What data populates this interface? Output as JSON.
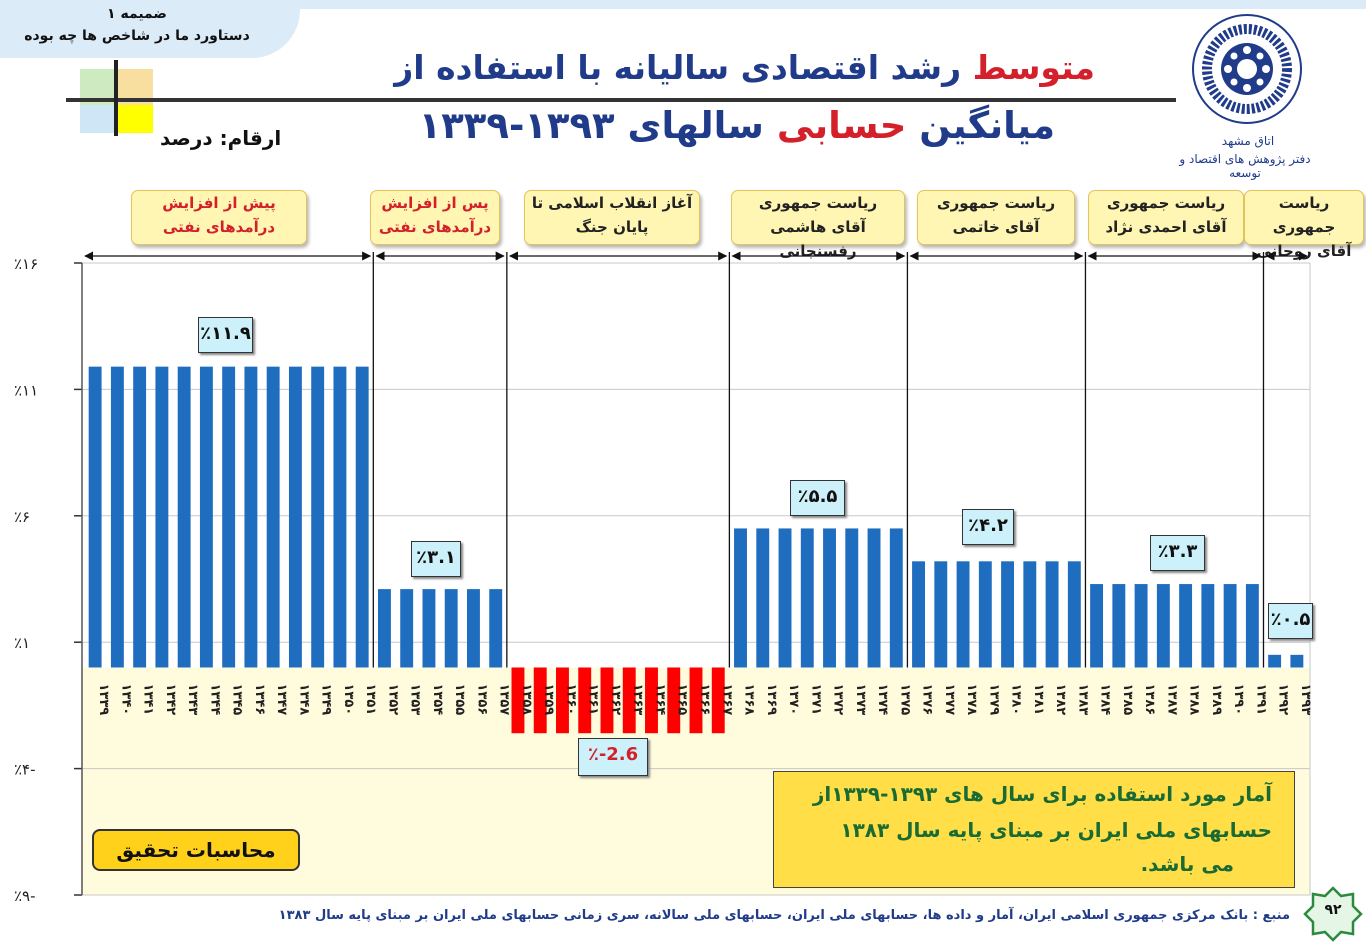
{
  "header": {
    "tab_line1": "ضمیمه ۱",
    "tab_line2": "دستاورد ما در شاخص ها چه بوده",
    "title1_red": "متوسط",
    "title1_rest": "رشد اقتصادی سالیانه با استفاده از",
    "title2_a": "میانگین",
    "title2_red": "حسابی",
    "title2_b": "سالهای ۱۳۹۳-۱۳۳۹",
    "units": "ارقام: درصد"
  },
  "logo": {
    "icon": "chamber-of-commerce-logo",
    "text1": "اتاق مشهد",
    "text2": "دفتر پژوهش های اقتصاد و توسعه"
  },
  "eras": [
    {
      "line1": "پیش از افزایش",
      "line2": "درآمدهای نفتی",
      "style": "red"
    },
    {
      "line1": "پس از افزایش",
      "line2": "درآمدهای نفتی",
      "style": "red"
    },
    {
      "line1": "آغاز انقلاب اسلامی تا",
      "line2": "پایان جنگ",
      "style": "dark"
    },
    {
      "line1": "ریاست جمهوری",
      "line2": "آقای هاشمی رفسنجانی",
      "style": "dark"
    },
    {
      "line1": "ریاست جمهوری",
      "line2": "آقای خاتمی",
      "style": "dark"
    },
    {
      "line1": "ریاست جمهوری",
      "line2": "آقای احمدی نژاد",
      "style": "dark"
    },
    {
      "line1": "ریاست جمهوری",
      "line2": "آقای روحانی",
      "style": "dark"
    }
  ],
  "chart_data": {
    "type": "bar",
    "ylim": [
      -9,
      16
    ],
    "yticks": [
      {
        "value": 16,
        "label": "٪۱۶"
      },
      {
        "value": 11,
        "label": "٪۱۱"
      },
      {
        "value": 6,
        "label": "٪۶"
      },
      {
        "value": 1,
        "label": "٪۱"
      },
      {
        "value": -4,
        "label": "٪۴-"
      },
      {
        "value": -9,
        "label": "٪۹-"
      }
    ],
    "categories": [
      "۱۳۳۹",
      "۱۳۴۰",
      "۱۳۴۱",
      "۱۳۴۲",
      "۱۳۴۳",
      "۱۳۴۴",
      "۱۳۴۵",
      "۱۳۴۶",
      "۱۳۴۷",
      "۱۳۴۸",
      "۱۳۴۹",
      "۱۳۵۰",
      "۱۳۵۱",
      "۱۳۵۲",
      "۱۳۵۳",
      "۱۳۵۴",
      "۱۳۵۵",
      "۱۳۵۶",
      "۱۳۵۷",
      "۱۳۵۸",
      "۱۳۵۹",
      "۱۳۶۰",
      "۱۳۶۱",
      "۱۳۶۲",
      "۱۳۶۳",
      "۱۳۶۴",
      "۱۳۶۵",
      "۱۳۶۶",
      "۱۳۶۷",
      "۱۳۶۸",
      "۱۳۶۹",
      "۱۳۷۰",
      "۱۳۷۱",
      "۱۳۷۲",
      "۱۳۷۳",
      "۱۳۷۴",
      "۱۳۷۵",
      "۱۳۷۶",
      "۱۳۷۷",
      "۱۳۷۸",
      "۱۳۷۹",
      "۱۳۸۰",
      "۱۳۸۱",
      "۱۳۸۲",
      "۱۳۸۳",
      "۱۳۸۴",
      "۱۳۸۵",
      "۱۳۸۶",
      "۱۳۸۷",
      "۱۳۸۸",
      "۱۳۸۹",
      "۱۳۹۰",
      "۱۳۹۱",
      "۱۳۹۲",
      "۱۳۹۳"
    ],
    "values": [
      11.9,
      11.9,
      11.9,
      11.9,
      11.9,
      11.9,
      11.9,
      11.9,
      11.9,
      11.9,
      11.9,
      11.9,
      11.9,
      3.1,
      3.1,
      3.1,
      3.1,
      3.1,
      3.1,
      -2.6,
      -2.6,
      -2.6,
      -2.6,
      -2.6,
      -2.6,
      -2.6,
      -2.6,
      -2.6,
      -2.6,
      5.5,
      5.5,
      5.5,
      5.5,
      5.5,
      5.5,
      5.5,
      5.5,
      4.2,
      4.2,
      4.2,
      4.2,
      4.2,
      4.2,
      4.2,
      4.2,
      3.3,
      3.3,
      3.3,
      3.3,
      3.3,
      3.3,
      3.3,
      3.3,
      0.5,
      0.5
    ],
    "period_sizes": [
      13,
      6,
      10,
      8,
      8,
      8,
      2
    ],
    "period_averages": [
      11.9,
      3.1,
      -2.6,
      5.5,
      4.2,
      3.3,
      0.5
    ],
    "period_labels": [
      "٪۱۱.۹",
      "٪۳.۱",
      "٪-2.6",
      "٪۵.۵",
      "٪۴.۲",
      "٪۳.۳",
      "٪۰.۵"
    ],
    "colors": {
      "positive": "#1f6dbf",
      "negative": "#ff0000",
      "lower_band": "#fffbdd"
    }
  },
  "note": {
    "line1": "آمار مورد استفاده برای سال های ۱۳۹۳-۱۳۳۹از",
    "line2": "حسابهای ملی ایران بر مبنای پایه سال ۱۳۸۳",
    "line3": "می باشد."
  },
  "calc_label": "محاسبات تحقیق",
  "source": "منبع : بانک مرکزی جمهوری اسلامی ایران، آمار و داده ها، حسابهای ملی ایران، حسابهای ملی سالانه، سری زمانی حسابهای ملی ایران بر مبنای پایه سال ۱۳۸۳",
  "page_number": "۹۲"
}
